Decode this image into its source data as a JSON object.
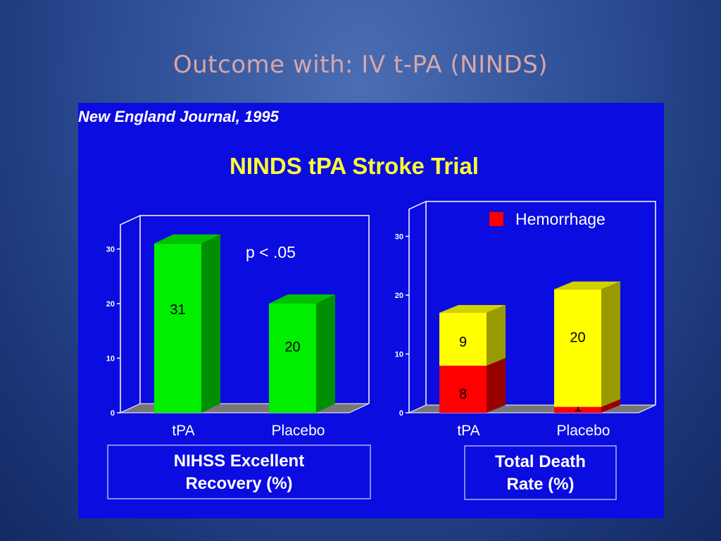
{
  "slide": {
    "title": "Outcome with: IV t-PA (NINDS)"
  },
  "panel": {
    "source": "New England Journal, 1995",
    "heading": "NINDS tPA Stroke Trial"
  },
  "colors": {
    "panel_bg": "#0b0ce0",
    "heading": "#ffff33",
    "green": "#00ee00",
    "yellow": "#ffff00",
    "red": "#ff0000",
    "frame": "#ffffff"
  },
  "chart_data": [
    {
      "type": "bar",
      "categories": [
        "tPA",
        "Placebo"
      ],
      "values": [
        31,
        20
      ],
      "data_labels": [
        "31",
        "20"
      ],
      "title": "NIHSS Excellent Recovery (%)",
      "title_lines": [
        "NIHSS Excellent",
        "Recovery (%)"
      ],
      "annotation": "p < .05",
      "yticks": [
        "0",
        "10",
        "20",
        "30"
      ],
      "ylim": [
        0,
        30
      ],
      "grid": false
    },
    {
      "type": "bar",
      "stacked": true,
      "categories": [
        "tPA",
        "Placebo"
      ],
      "series": [
        {
          "name": "Hemorrhage",
          "values": [
            8,
            1
          ],
          "labels": [
            "8",
            "1"
          ]
        },
        {
          "name": "",
          "values": [
            9,
            20
          ],
          "labels": [
            "9",
            "20"
          ]
        }
      ],
      "legend": {
        "entries": [
          "Hemorrhage"
        ],
        "position": "top-right"
      },
      "title": "Total Death Rate (%)",
      "title_lines": [
        "Total Death",
        "Rate (%)"
      ],
      "yticks": [
        "0",
        "10",
        "20",
        "30"
      ],
      "ylim": [
        0,
        30
      ],
      "grid": false
    }
  ]
}
